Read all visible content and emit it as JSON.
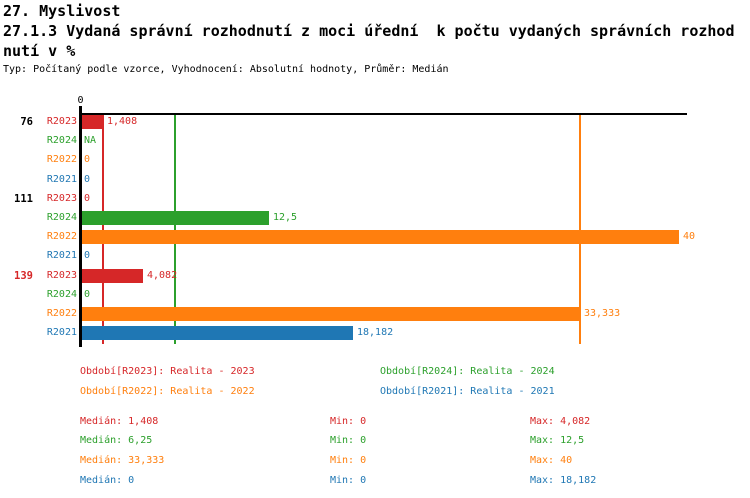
{
  "header": {
    "section_title": "27. Myslivost",
    "indicator_title_lines": [
      "27.1.3 Vydaná správní rozhodnutí z moci úřední  k počtu vydaných správních rozhod",
      "nutí v %"
    ],
    "meta": "Typ: Počítaný podle vzorce, Vyhodnocení: Absolutní hodnoty, Průměr: Medián"
  },
  "chart_data": {
    "type": "bar",
    "orientation": "horizontal",
    "title": "27.1.3 Vydaná správní rozhodnutí z moci úřední k počtu vydaných správních rozhodnutí v %",
    "axis": {
      "origin_tick": "0",
      "min": 0,
      "max_visible": 40.6,
      "grid": "median-lines-only"
    },
    "series": [
      {
        "id": "R2023",
        "color": "#d62728",
        "legend": "Období[R2023]: Realita - 2023",
        "median": 1.408,
        "min": 0,
        "max": 4.082,
        "median_display": "Medián: 1,408",
        "min_display": "Min: 0",
        "max_display": "Max: 4,082"
      },
      {
        "id": "R2024",
        "color": "#2ca02c",
        "legend": "Období[R2024]: Realita - 2024",
        "median": 6.25,
        "min": 0,
        "max": 12.5,
        "median_display": "Medián: 6,25",
        "min_display": "Min: 0",
        "max_display": "Max: 12,5"
      },
      {
        "id": "R2022",
        "color": "#ff7f0e",
        "legend": "Období[R2022]: Realita - 2022",
        "median": 33.333,
        "min": 0,
        "max": 40,
        "median_display": "Medián: 33,333",
        "min_display": "Min: 0",
        "max_display": "Max: 40"
      },
      {
        "id": "R2021",
        "color": "#1f77b4",
        "legend": "Období[R2021]: Realita - 2021",
        "median": 0,
        "min": 0,
        "max": 18.182,
        "median_display": "Medián: 0",
        "min_display": "Min: 0",
        "max_display": "Max: 18,182"
      }
    ],
    "groups": [
      {
        "label": "76",
        "label_color": "#000000",
        "bars": [
          {
            "series": "R2023",
            "value": 1.408,
            "display": "1,408"
          },
          {
            "series": "R2024",
            "value": null,
            "display": "NA"
          },
          {
            "series": "R2022",
            "value": 0,
            "display": "0"
          },
          {
            "series": "R2021",
            "value": 0,
            "display": "0"
          }
        ]
      },
      {
        "label": "111",
        "label_color": "#000000",
        "bars": [
          {
            "series": "R2023",
            "value": 0,
            "display": "0"
          },
          {
            "series": "R2024",
            "value": 12.5,
            "display": "12,5"
          },
          {
            "series": "R2022",
            "value": 40,
            "display": "40"
          },
          {
            "series": "R2021",
            "value": 0,
            "display": "0"
          }
        ]
      },
      {
        "label": "139",
        "label_color": "#d62728",
        "bars": [
          {
            "series": "R2023",
            "value": 4.082,
            "display": "4,082"
          },
          {
            "series": "R2024",
            "value": 0,
            "display": "0"
          },
          {
            "series": "R2022",
            "value": 33.333,
            "display": "33,333"
          },
          {
            "series": "R2021",
            "value": 18.182,
            "display": "18,182"
          }
        ]
      }
    ]
  }
}
